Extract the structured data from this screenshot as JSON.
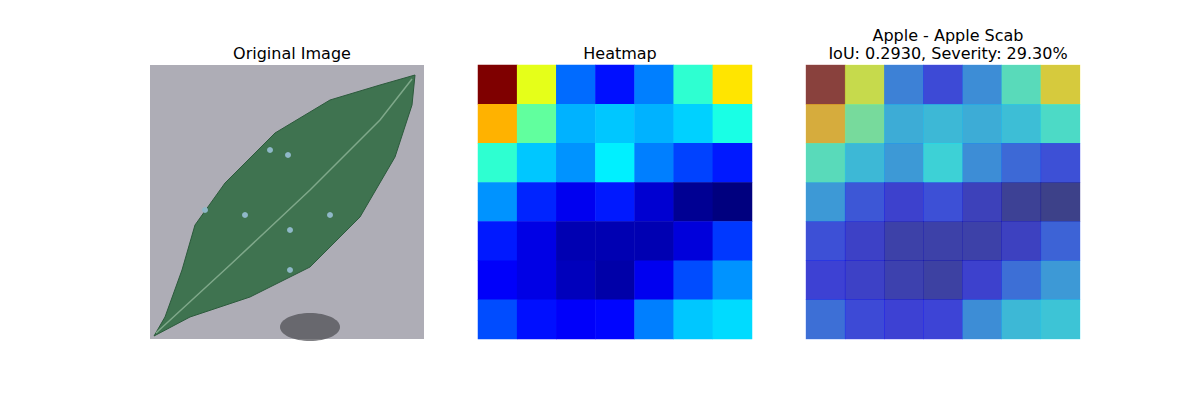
{
  "chart_data": [
    {
      "type": "image",
      "title": "Original Image"
    },
    {
      "type": "heatmap",
      "title": "Heatmap",
      "color": "jet",
      "tick_labels": false,
      "color_range": [
        0,
        1
      ],
      "cells": [
        [
          1.0,
          0.6,
          0.23,
          0.14,
          0.25,
          0.42,
          0.65
        ],
        [
          0.7,
          0.47,
          0.3,
          0.32,
          0.3,
          0.33,
          0.4
        ],
        [
          0.42,
          0.32,
          0.27,
          0.36,
          0.25,
          0.19,
          0.15
        ],
        [
          0.27,
          0.16,
          0.11,
          0.15,
          0.08,
          0.02,
          0.0
        ],
        [
          0.15,
          0.1,
          0.05,
          0.05,
          0.05,
          0.09,
          0.18
        ],
        [
          0.12,
          0.1,
          0.06,
          0.04,
          0.11,
          0.2,
          0.27
        ],
        [
          0.2,
          0.14,
          0.12,
          0.13,
          0.25,
          0.32,
          0.34
        ]
      ]
    },
    {
      "type": "overlay",
      "title": "Apple - Apple Scab\nIoU: 0.2930, Severity: 29.30%",
      "color": "jet",
      "tick_labels": false,
      "color_range": [
        0,
        1
      ],
      "cells": [
        [
          1.0,
          0.6,
          0.23,
          0.14,
          0.25,
          0.42,
          0.65
        ],
        [
          0.7,
          0.47,
          0.3,
          0.32,
          0.3,
          0.33,
          0.4
        ],
        [
          0.42,
          0.32,
          0.27,
          0.36,
          0.25,
          0.19,
          0.15
        ],
        [
          0.27,
          0.16,
          0.11,
          0.15,
          0.08,
          0.02,
          0.0
        ],
        [
          0.15,
          0.1,
          0.05,
          0.05,
          0.05,
          0.09,
          0.18
        ],
        [
          0.12,
          0.1,
          0.06,
          0.04,
          0.11,
          0.2,
          0.27
        ],
        [
          0.2,
          0.14,
          0.12,
          0.13,
          0.25,
          0.32,
          0.34
        ]
      ]
    }
  ]
}
